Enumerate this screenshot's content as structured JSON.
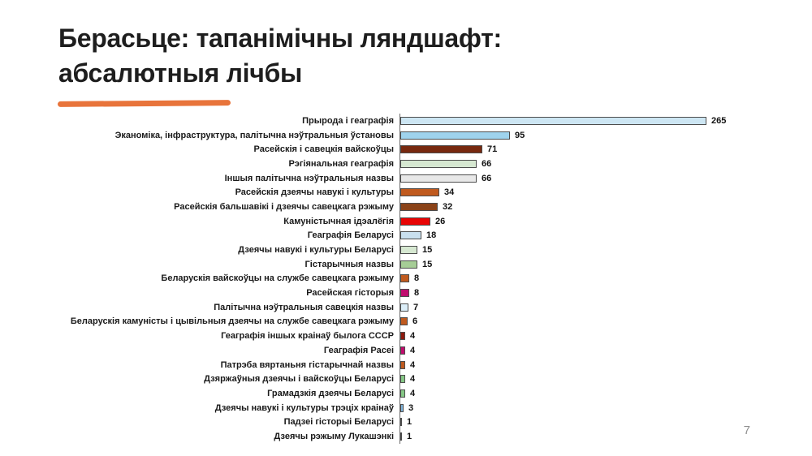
{
  "slide": {
    "title_line1": "Берасьце: тапанімічны ляндшафт:",
    "title_line2": "абсалютныя лічбы",
    "page_number": "7",
    "accent_color": "#e8743b"
  },
  "chart_data": {
    "type": "bar",
    "orientation": "horizontal",
    "title": "Берасьце: тапанімічны ляндшафт: абсалютныя лічбы",
    "xlabel": "",
    "ylabel": "",
    "xlim": [
      0,
      290
    ],
    "grid": false,
    "legend": false,
    "value_labels_shown": true,
    "bar_border_color": "#4d4d4d",
    "categories": [
      "Прырода і геаграфія",
      "Эканоміка, інфраструктура, палітычна нэўтральныя ўстановы",
      "Расейскія і савецкія вайскоўцы",
      "Рэгіянальная геаграфія",
      "Іншыя палітычна нэўтральныя назвы",
      "Расейскія дзеячы навукі і культуры",
      "Расейскія бальшавікі і дзеячы савецкага рэжыму",
      "Камуністычная ідэалёгія",
      "Геаграфія Беларусі",
      "Дзеячы навукі і культуры Беларусі",
      "Гістарычныя назвы",
      "Беларускія вайскоўцы на службе савецкага рэжыму",
      "Расейская гісторыя",
      "Палітычна нэўтральныя савецкія назвы",
      "Беларускія камуністы і цывільныя дзеячы на службе савецкага рэжыму",
      "Геаграфія іншых краінаў былога СССР",
      "Геаграфія Расеі",
      "Патрэба вяртаньня гістарычнай назвы",
      "Дзяржаўныя дзеячы і вайскоўцы Беларусі",
      "Грамадзкія дзеячы Беларусі",
      "Дзеячы навукі і культуры трэціх краінаў",
      "Падзеі гісторыі Беларусі",
      "Дзеячы рэжыму Лукашэнкі"
    ],
    "values": [
      265,
      95,
      71,
      66,
      66,
      34,
      32,
      26,
      18,
      15,
      15,
      8,
      8,
      7,
      6,
      4,
      4,
      4,
      4,
      4,
      3,
      1,
      1
    ],
    "colors": [
      "#cde6f3",
      "#9fd3ed",
      "#77290f",
      "#d6e8d1",
      "#e8e8e8",
      "#c05a1e",
      "#8b4318",
      "#e80505",
      "#c9e0ef",
      "#d6e8d1",
      "#a6cd96",
      "#c05a1e",
      "#c00d6e",
      "#dceef8",
      "#c05a1e",
      "#8e1a0d",
      "#c00d6e",
      "#c05a1e",
      "#85c785",
      "#85c785",
      "#7eb4dc",
      "#ffffff",
      "#ffffff"
    ]
  }
}
